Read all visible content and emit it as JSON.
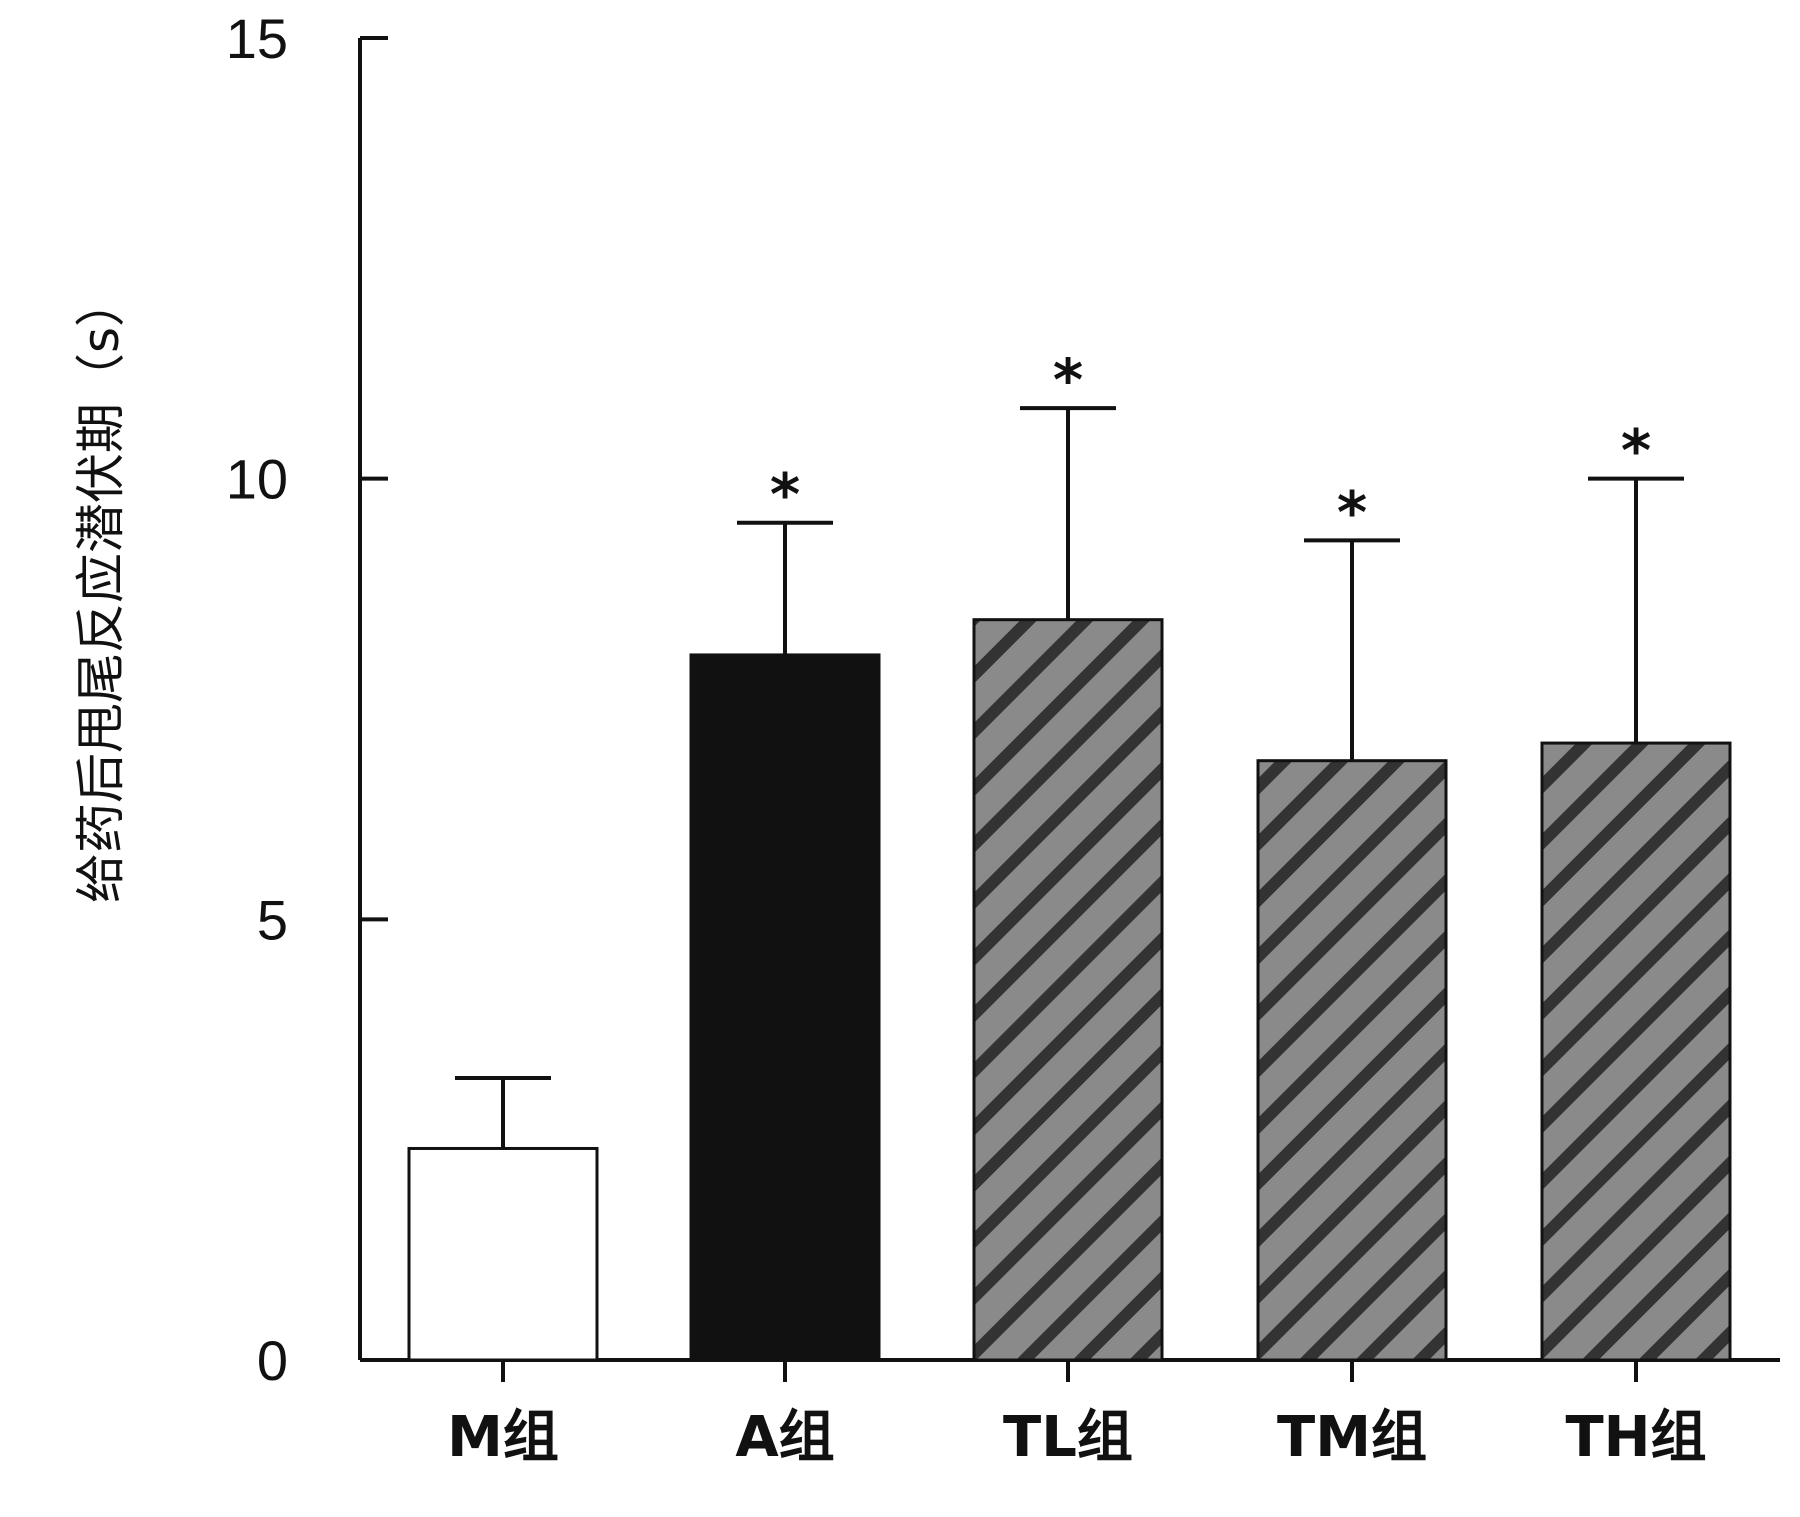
{
  "chart_data": {
    "type": "bar",
    "title": "",
    "xlabel": "",
    "ylabel": "给药后甩尾反应潜伏期（s）",
    "ylim": [
      0,
      15
    ],
    "yticks": [
      0,
      5,
      10,
      15
    ],
    "categories": [
      "M组",
      "A组",
      "TL组",
      "TM组",
      "TH组"
    ],
    "values": [
      2.4,
      8.0,
      8.4,
      6.8,
      7.0
    ],
    "error_upper": [
      3.2,
      9.5,
      10.8,
      9.3,
      10.0
    ],
    "significance": [
      "",
      "*",
      "*",
      "*",
      "*"
    ],
    "fills": [
      "white",
      "black",
      "hatched",
      "hatched",
      "hatched"
    ],
    "colors": {
      "white_bar": "#ffffff",
      "black_bar": "#111111",
      "hatch_base": "#8a8a8a",
      "hatch_stripe": "#333333",
      "axis": "#111111"
    },
    "grid": false,
    "legend": "none"
  }
}
